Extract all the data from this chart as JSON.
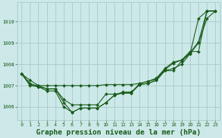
{
  "background_color": "#cce8e8",
  "grid_color": "#aacccc",
  "line_color": "#1a5c1a",
  "marker_color": "#1a5c1a",
  "xlabel": "Graphe pression niveau de la mer (hPa)",
  "xlabel_fontsize": 7.5,
  "ylim": [
    1005.4,
    1010.9
  ],
  "xlim": [
    -0.5,
    23.5
  ],
  "yticks": [
    1006,
    1007,
    1008,
    1009,
    1010
  ],
  "xticks": [
    0,
    1,
    2,
    3,
    4,
    5,
    6,
    7,
    8,
    9,
    10,
    11,
    12,
    13,
    14,
    15,
    16,
    17,
    18,
    19,
    20,
    21,
    22,
    23
  ],
  "series": [
    [
      1007.55,
      1007.25,
      1007.0,
      1006.85,
      1006.85,
      1006.2,
      1005.75,
      1005.95,
      1005.95,
      1005.95,
      1006.2,
      1006.55,
      1006.7,
      1006.7,
      1007.05,
      1007.1,
      1007.25,
      1007.7,
      1007.7,
      1008.15,
      1008.5,
      1010.15,
      1010.5,
      1010.5
    ],
    [
      1007.55,
      1007.1,
      1006.95,
      1006.85,
      1006.85,
      1006.35,
      1006.1,
      1006.1,
      1006.1,
      1006.1,
      1006.6,
      1006.6,
      1006.65,
      1006.65,
      1007.1,
      1007.2,
      1007.35,
      1007.8,
      1008.1,
      1008.2,
      1008.6,
      1008.6,
      1010.5,
      1010.5
    ],
    [
      1007.55,
      1007.05,
      1007.0,
      1007.0,
      1007.0,
      1007.0,
      1007.0,
      1007.0,
      1007.0,
      1007.0,
      1007.05,
      1007.05,
      1007.05,
      1007.05,
      1007.1,
      1007.2,
      1007.3,
      1007.75,
      1008.05,
      1008.2,
      1008.55,
      1009.05,
      1010.5,
      1010.5
    ],
    [
      1007.55,
      1007.0,
      1006.95,
      1006.75,
      1006.75,
      1006.0,
      1005.75,
      1005.95,
      1005.95,
      1005.95,
      1006.2,
      1006.55,
      1006.65,
      1006.65,
      1007.05,
      1007.1,
      1007.25,
      1007.7,
      1007.8,
      1008.0,
      1008.5,
      1009.0,
      1010.15,
      1010.5
    ]
  ]
}
